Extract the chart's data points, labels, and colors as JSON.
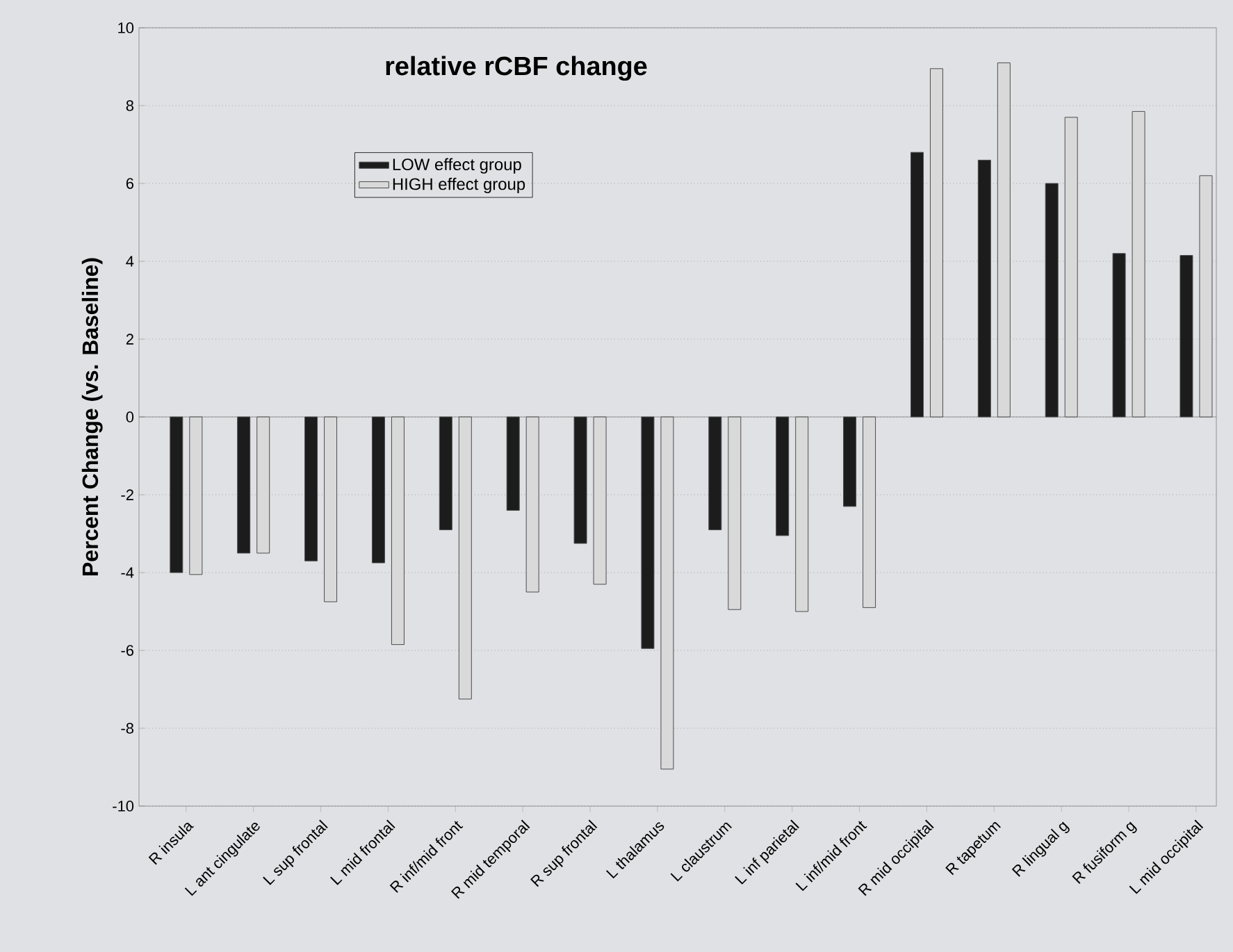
{
  "chart_data": {
    "type": "bar",
    "title": "relative rCBF change",
    "ylabel": "Percent Change (vs. Baseline)",
    "categories": [
      "R insula",
      "L ant cingulate",
      "L sup frontal",
      "L mid frontal",
      "R inf/mid front",
      "R mid temporal",
      "R sup frontal",
      "L thalamus",
      "L claustrum",
      "L inf parietal",
      "L inf/mid front",
      "R mid occipital",
      "R tapetum",
      "R lingual g",
      "R fusiform g",
      "L mid occipital"
    ],
    "series": [
      {
        "name": "LOW effect group",
        "color": "#1c1c1c",
        "values": [
          -4.0,
          -3.5,
          -3.7,
          -3.75,
          -2.9,
          -2.4,
          -3.25,
          -5.95,
          -2.9,
          -3.05,
          -2.3,
          6.8,
          6.6,
          6.0,
          4.2,
          4.15
        ]
      },
      {
        "name": "HIGH effect group",
        "color": "#d9d9d9",
        "values": [
          -4.05,
          -3.5,
          -4.75,
          -5.85,
          -7.25,
          -4.5,
          -4.3,
          -9.05,
          -4.95,
          -5.0,
          -4.9,
          8.95,
          9.1,
          7.7,
          7.85,
          6.2
        ]
      }
    ],
    "ylim": [
      -10,
      10
    ],
    "yticks": [
      -10,
      -8,
      -6,
      -4,
      -2,
      0,
      2,
      4,
      6,
      8,
      10
    ],
    "grid": "y",
    "legend": "top left"
  }
}
